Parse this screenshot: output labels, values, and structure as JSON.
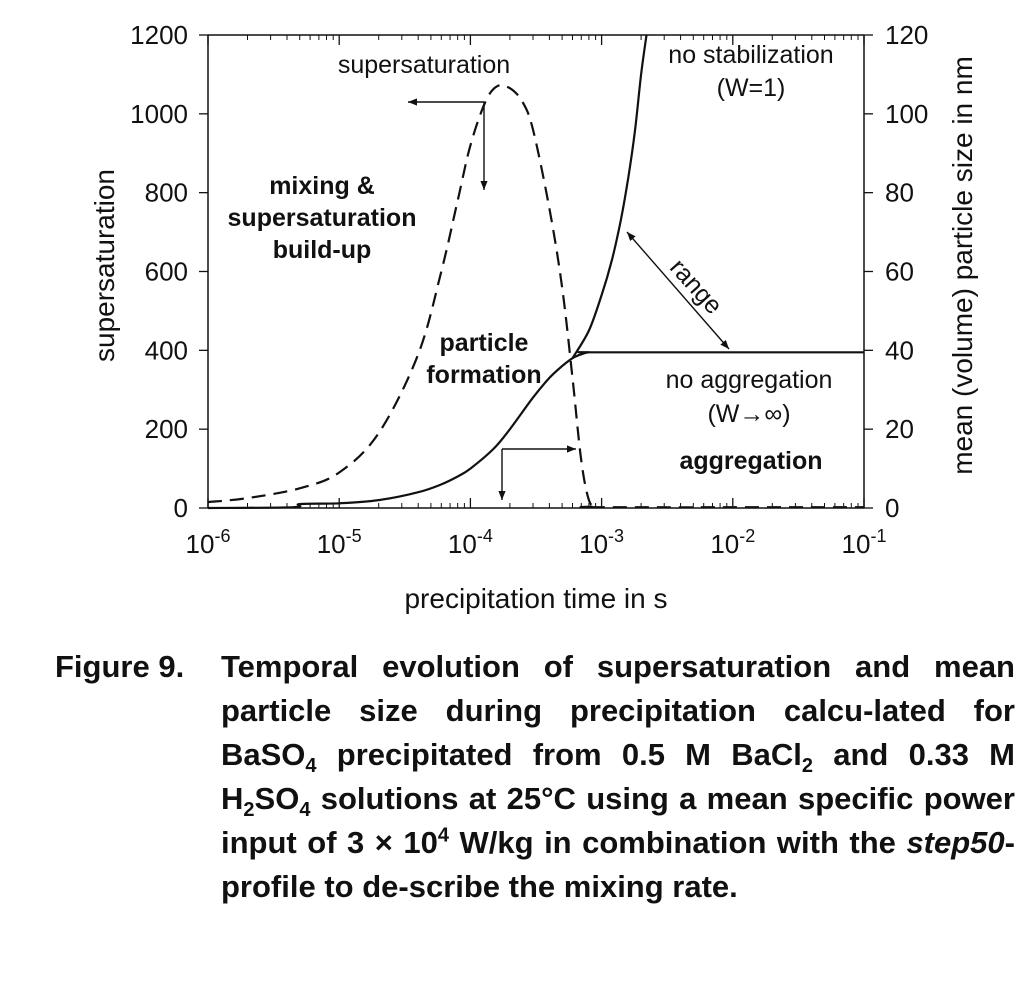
{
  "chart_data": {
    "type": "line",
    "x_scale": "log",
    "xlim": [
      1e-06,
      0.1
    ],
    "xlabel": "precipitation time in s",
    "x_ticks": [
      {
        "value": 1e-06,
        "base": "10",
        "exp": "-6"
      },
      {
        "value": 1e-05,
        "base": "10",
        "exp": "-5"
      },
      {
        "value": 0.0001,
        "base": "10",
        "exp": "-4"
      },
      {
        "value": 0.001,
        "base": "10",
        "exp": "-3"
      },
      {
        "value": 0.01,
        "base": "10",
        "exp": "-2"
      },
      {
        "value": 0.1,
        "base": "10",
        "exp": "-1"
      }
    ],
    "y_left": {
      "label": "supersaturation",
      "lim": [
        0,
        1200
      ],
      "ticks": [
        "0",
        "200",
        "400",
        "600",
        "800",
        "1000",
        "1200"
      ]
    },
    "y_right": {
      "label": "mean (volume) particle size in nm",
      "lim": [
        0,
        120
      ],
      "ticks": [
        "0",
        "20",
        "40",
        "60",
        "80",
        "100",
        "120"
      ]
    },
    "series": [
      {
        "axis": "left",
        "style": "dashed",
        "x": [
          1e-06,
          2e-06,
          5e-06,
          1e-05,
          2e-05,
          4e-05,
          6e-05,
          8e-05,
          0.0001,
          0.00013,
          0.00016,
          0.0002,
          0.00025,
          0.0003,
          0.0004,
          0.0005,
          0.0006,
          0.0007,
          0.0008,
          0.0009,
          0.001,
          0.1
        ],
        "y": [
          15,
          25,
          50,
          90,
          190,
          390,
          600,
          780,
          920,
          1030,
          1070,
          1065,
          1030,
          960,
          760,
          560,
          330,
          120,
          20,
          5,
          2,
          2
        ]
      },
      {
        "axis": "right",
        "style": "solid",
        "x": [
          1e-06,
          4.5e-06,
          5e-06,
          1e-05,
          2e-05,
          4e-05,
          6e-05,
          8e-05,
          0.0001,
          0.00015,
          0.0002,
          0.0003,
          0.0004,
          0.0005,
          0.0006,
          0.0007,
          0.0008,
          0.001,
          0.1
        ],
        "y": [
          0,
          0.2,
          1,
          1.2,
          2,
          4,
          6,
          8,
          10,
          15,
          20,
          28,
          33,
          36,
          38,
          39,
          39.5,
          39.5,
          39.5
        ]
      },
      {
        "axis": "right",
        "style": "solid",
        "x": [
          0.0006,
          0.0008,
          0.001,
          0.0012,
          0.0014,
          0.0016,
          0.0018,
          0.002,
          0.0022
        ],
        "y": [
          38,
          45,
          54,
          63,
          73,
          84,
          96,
          110,
          120
        ]
      }
    ],
    "annotations": {
      "supersaturation": "supersaturation",
      "mixing": [
        "mixing &",
        "supersaturation",
        "build-up"
      ],
      "particle": [
        "particle",
        "formation"
      ],
      "no_stab": [
        "no stabilization",
        "(W=1)"
      ],
      "range": "range",
      "no_agg": [
        "no aggregation",
        "(W→∞)"
      ],
      "aggregation": "aggregation"
    }
  },
  "caption": {
    "label": "Figure 9.",
    "parts": [
      {
        "t": "Temporal evolution of supersaturation and mean particle size during precipitation calcu-lated for BaSO"
      },
      {
        "sub": "4"
      },
      {
        "t": " precipitated from 0.5 M BaCl"
      },
      {
        "sub": "2"
      },
      {
        "t": " and 0.33 M H"
      },
      {
        "sub": "2"
      },
      {
        "t": "SO"
      },
      {
        "sub": "4"
      },
      {
        "t": " solutions at 25°C using a mean specific power input of 3 × 10"
      },
      {
        "sup": "4"
      },
      {
        "t": " W/kg in combination with the "
      },
      {
        "em": "step50"
      },
      {
        "t": "-profile to de-scribe the mixing rate."
      }
    ]
  },
  "colors": {
    "ink": "#111111",
    "background": "#ffffff"
  }
}
